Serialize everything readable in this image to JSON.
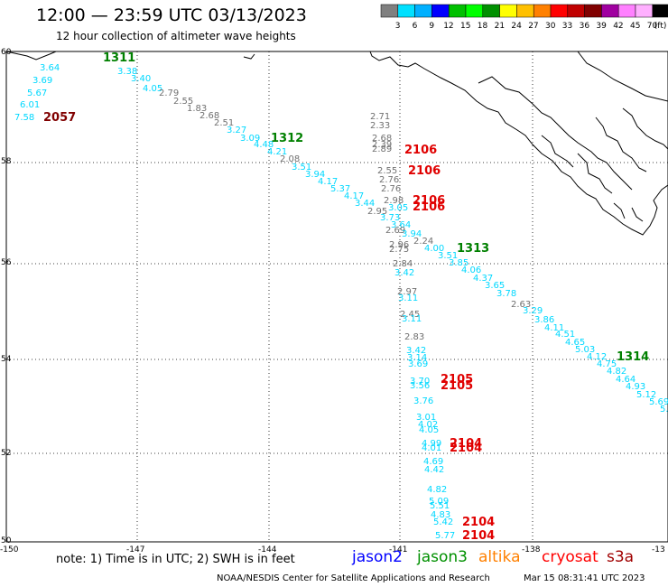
{
  "header": {
    "title": "12:00 — 23:59 UTC 03/13/2023",
    "subtitle": "12 hour collection of altimeter wave heights"
  },
  "colorbar": {
    "ticks": [
      "3",
      "6",
      "9",
      "12",
      "15",
      "18",
      "21",
      "24",
      "27",
      "30",
      "33",
      "36",
      "39",
      "42",
      "45",
      "70"
    ],
    "unit": "(ft)",
    "colors": [
      "#808080",
      "#00e0ff",
      "#00b0ff",
      "#0000ff",
      "#00c000",
      "#00ff00",
      "#009000",
      "#ffff00",
      "#ffc000",
      "#ff8000",
      "#ff0000",
      "#c00000",
      "#800000",
      "#a000a0",
      "#ff80ff",
      "#ffb0ff",
      "#000000"
    ]
  },
  "axes": {
    "x_labels": [
      "-150",
      "-147",
      "-144",
      "-141",
      "-138",
      "-13"
    ],
    "y_labels": [
      "60",
      "58",
      "56",
      "54",
      "52",
      "50"
    ]
  },
  "tracks": {
    "track_a": {
      "points": [
        {
          "t": "3.64",
          "c": "cyan"
        },
        {
          "t": "3.69",
          "c": "cyan"
        },
        {
          "t": "5.67",
          "c": "cyan"
        },
        {
          "t": "6.01",
          "c": "cyan"
        },
        {
          "t": "7.58",
          "c": "cyan"
        },
        {
          "t": "3.38",
          "c": "cyan"
        },
        {
          "t": "3.40",
          "c": "cyan"
        },
        {
          "t": "4.05",
          "c": "cyan"
        },
        {
          "t": "2.79",
          "c": "gray"
        },
        {
          "t": "2.55",
          "c": "gray"
        },
        {
          "t": "1.83",
          "c": "gray"
        },
        {
          "t": "2.68",
          "c": "gray"
        },
        {
          "t": "2.51",
          "c": "gray"
        },
        {
          "t": "3.27",
          "c": "cyan"
        },
        {
          "t": "3.09",
          "c": "cyan"
        },
        {
          "t": "4.48",
          "c": "cyan"
        },
        {
          "t": "4.21",
          "c": "cyan"
        },
        {
          "t": "2.08",
          "c": "gray"
        },
        {
          "t": "3.51",
          "c": "cyan"
        },
        {
          "t": "3.94",
          "c": "cyan"
        },
        {
          "t": "4.17",
          "c": "cyan"
        },
        {
          "t": "5.37",
          "c": "cyan"
        },
        {
          "t": "4.17",
          "c": "cyan"
        },
        {
          "t": "3.44",
          "c": "cyan"
        },
        {
          "t": "2.95",
          "c": "gray"
        },
        {
          "t": "3.73",
          "c": "cyan"
        },
        {
          "t": "3.64",
          "c": "cyan"
        },
        {
          "t": "2.69",
          "c": "gray"
        },
        {
          "t": "3.94",
          "c": "cyan"
        },
        {
          "t": "2.24",
          "c": "gray"
        },
        {
          "t": "4.00",
          "c": "cyan"
        },
        {
          "t": "3.51",
          "c": "cyan"
        },
        {
          "t": "3.85",
          "c": "cyan"
        },
        {
          "t": "4.06",
          "c": "cyan"
        },
        {
          "t": "4.37",
          "c": "cyan"
        },
        {
          "t": "3.65",
          "c": "cyan"
        },
        {
          "t": "3.78",
          "c": "cyan"
        },
        {
          "t": "2.63",
          "c": "gray"
        },
        {
          "t": "3.29",
          "c": "cyan"
        },
        {
          "t": "3.86",
          "c": "cyan"
        },
        {
          "t": "4.11",
          "c": "cyan"
        },
        {
          "t": "4.51",
          "c": "cyan"
        },
        {
          "t": "4.65",
          "c": "cyan"
        },
        {
          "t": "5.03",
          "c": "cyan"
        },
        {
          "t": "4.12",
          "c": "cyan"
        },
        {
          "t": "4.75",
          "c": "cyan"
        },
        {
          "t": "4.82",
          "c": "cyan"
        },
        {
          "t": "4.64",
          "c": "cyan"
        },
        {
          "t": "4.93",
          "c": "cyan"
        },
        {
          "t": "5.12",
          "c": "cyan"
        },
        {
          "t": "5.69",
          "c": "cyan"
        },
        {
          "t": "5.",
          "c": "cyan"
        }
      ]
    },
    "track_b": {
      "points": [
        {
          "t": "2.71",
          "c": "gray"
        },
        {
          "t": "2.33",
          "c": "gray"
        },
        {
          "t": "2.68",
          "c": "gray"
        },
        {
          "t": "2.39",
          "c": "gray"
        },
        {
          "t": "2.89",
          "c": "gray"
        },
        {
          "t": "2.55",
          "c": "gray"
        },
        {
          "t": "2.76",
          "c": "gray"
        },
        {
          "t": "2.76",
          "c": "gray"
        },
        {
          "t": "2.98",
          "c": "gray"
        },
        {
          "t": "3.05",
          "c": "cyan"
        },
        {
          "t": "2.96",
          "c": "gray"
        },
        {
          "t": "2.75",
          "c": "gray"
        },
        {
          "t": "2.84",
          "c": "gray"
        },
        {
          "t": "3.42",
          "c": "cyan"
        },
        {
          "t": "2.97",
          "c": "gray"
        },
        {
          "t": "3.11",
          "c": "cyan"
        },
        {
          "t": "2.45",
          "c": "gray"
        },
        {
          "t": "3.11",
          "c": "cyan"
        },
        {
          "t": "2.83",
          "c": "gray"
        },
        {
          "t": "3.42",
          "c": "cyan"
        },
        {
          "t": "3.14",
          "c": "cyan"
        },
        {
          "t": "3.69",
          "c": "cyan"
        },
        {
          "t": "3.70",
          "c": "cyan"
        },
        {
          "t": "3.56",
          "c": "cyan"
        },
        {
          "t": "3.76",
          "c": "cyan"
        },
        {
          "t": "3.01",
          "c": "cyan"
        },
        {
          "t": "4.02",
          "c": "cyan"
        },
        {
          "t": "4.05",
          "c": "cyan"
        },
        {
          "t": "4.99",
          "c": "cyan"
        },
        {
          "t": "4.01",
          "c": "cyan"
        },
        {
          "t": "4.69",
          "c": "cyan"
        },
        {
          "t": "4.42",
          "c": "cyan"
        },
        {
          "t": "4.82",
          "c": "cyan"
        },
        {
          "t": "5.09",
          "c": "cyan"
        },
        {
          "t": "5.51",
          "c": "cyan"
        },
        {
          "t": "4.83",
          "c": "cyan"
        },
        {
          "t": "5.42",
          "c": "cyan"
        },
        {
          "t": "5.77",
          "c": "cyan"
        }
      ]
    }
  },
  "time_labels": [
    {
      "t": "1311",
      "c": "green"
    },
    {
      "t": "2057",
      "c": "maroon"
    },
    {
      "t": "1312",
      "c": "green"
    },
    {
      "t": "2106",
      "c": "red"
    },
    {
      "t": "2106",
      "c": "red"
    },
    {
      "t": "2106",
      "c": "red"
    },
    {
      "t": "2106",
      "c": "red"
    },
    {
      "t": "1313",
      "c": "green"
    },
    {
      "t": "1314",
      "c": "green"
    },
    {
      "t": "2105",
      "c": "red"
    },
    {
      "t": "2105",
      "c": "red"
    },
    {
      "t": "2104",
      "c": "red"
    },
    {
      "t": "2104",
      "c": "red"
    },
    {
      "t": "2104",
      "c": "red"
    },
    {
      "t": "2104",
      "c": "red"
    }
  ],
  "footer": {
    "note": "note: 1) Time is in UTC; 2) SWH is in feet",
    "satellites": [
      {
        "name": "jason2",
        "color": "#0000ff"
      },
      {
        "name": "jason3",
        "color": "#009000"
      },
      {
        "name": "altika",
        "color": "#ff8000"
      },
      {
        "name": "cryosat",
        "color": "#ff0000"
      },
      {
        "name": "s3a",
        "color": "#a00000"
      }
    ],
    "credit": "NOAA/NESDIS Center for Satellite Applications and Research",
    "timestamp": "Mar 15 08:31:41 UTC 2023"
  },
  "colors": {
    "cyan": "#00d8ff",
    "gray": "#707070",
    "green": "#008000",
    "red": "#e00000",
    "maroon": "#800000"
  }
}
